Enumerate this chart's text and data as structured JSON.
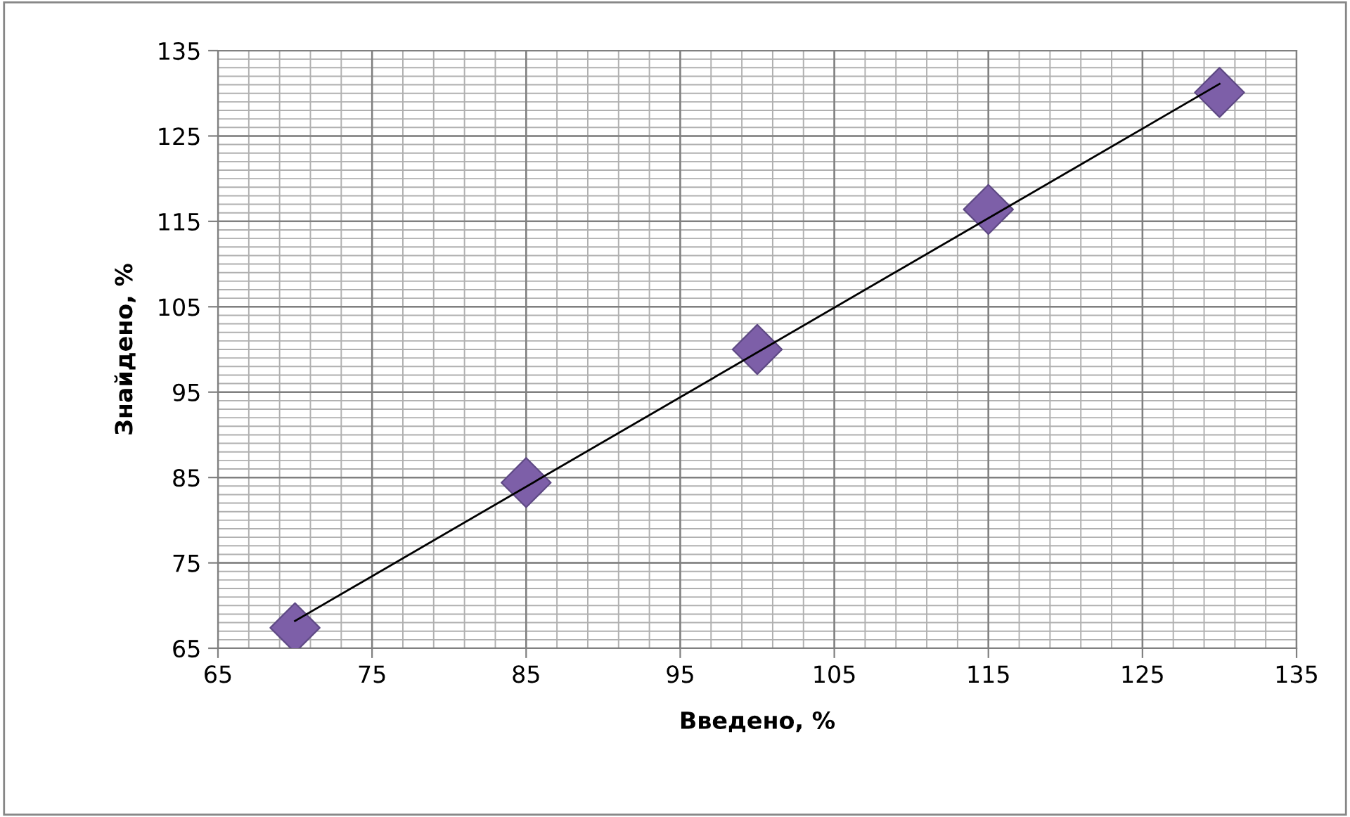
{
  "chart_data": {
    "type": "scatter",
    "xlabel": "Введено, %",
    "ylabel": "Знайдено, %",
    "xlim": [
      65,
      135
    ],
    "xticks": [
      65,
      75,
      85,
      95,
      105,
      115,
      125,
      135
    ],
    "ylim": [
      65,
      135
    ],
    "yticks": [
      65,
      75,
      85,
      95,
      105,
      115,
      125,
      135
    ],
    "grid": true,
    "marker": "diamond",
    "legend": false,
    "series": [
      {
        "color": "#7d5fa8",
        "x": [
          70,
          85,
          100,
          115,
          130
        ],
        "values": [
          67.4,
          84.4,
          100.0,
          116.4,
          130.1
        ]
      },
      {
        "type": "line",
        "color": "#000000",
        "marker": "none",
        "line_style": "solid",
        "x": [
          70,
          130
        ],
        "values": [
          68.2,
          131.1
        ]
      }
    ]
  }
}
